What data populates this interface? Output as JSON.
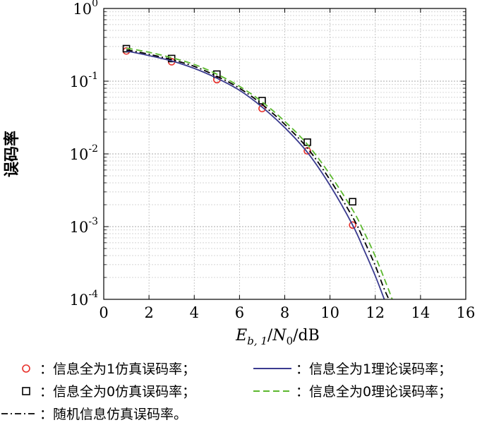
{
  "chart_data": {
    "type": "line",
    "title": "",
    "xlabel": {
      "E": "E",
      "sub": "b, 1",
      "slash": "/",
      "N": "N",
      "nsub": "0",
      "unit": "/dB"
    },
    "ylabel": "误码率",
    "xlim": [
      0,
      16
    ],
    "ylim": [
      0.0001,
      1
    ],
    "yscale": "log",
    "grid": true,
    "xticks": [
      "0",
      "2",
      "4",
      "6",
      "8",
      "10",
      "12",
      "14",
      "16"
    ],
    "yticks": [
      {
        "base": "10",
        "exp": "0"
      },
      {
        "base": "10",
        "exp": "-1"
      },
      {
        "base": "10",
        "exp": "-2"
      },
      {
        "base": "10",
        "exp": "-3"
      },
      {
        "base": "10",
        "exp": "-4"
      }
    ],
    "series": [
      {
        "name": "：信息全为1仿真误码率；",
        "style": "circle",
        "color": "#e8302a",
        "x": [
          1,
          3,
          5,
          7,
          9,
          11
        ],
        "y": [
          0.26,
          0.185,
          0.105,
          0.042,
          0.011,
          0.00105
        ]
      },
      {
        "name": "：信息全为0仿真误码率；",
        "style": "square",
        "color": "#000000",
        "x": [
          1,
          3,
          5,
          7,
          9,
          11
        ],
        "y": [
          0.28,
          0.205,
          0.125,
          0.054,
          0.0145,
          0.0022
        ]
      },
      {
        "name": "：信息全为1理论误码率；",
        "style": "solid",
        "color": "#3b3b8f",
        "x": [
          1,
          2,
          3,
          4,
          5,
          6,
          7,
          8,
          9,
          10,
          11,
          11.5,
          12,
          12.4
        ],
        "y": [
          0.26,
          0.225,
          0.19,
          0.15,
          0.11,
          0.075,
          0.044,
          0.023,
          0.0105,
          0.0037,
          0.00105,
          0.00048,
          0.00021,
          0.0001
        ]
      },
      {
        "name": "：信息全为0理论误码率；",
        "style": "dashed",
        "color": "#5cb82e",
        "x": [
          1,
          2,
          3,
          4,
          5,
          6,
          7,
          8,
          9,
          10,
          11,
          11.5,
          12,
          12.5,
          12.75
        ],
        "y": [
          0.285,
          0.25,
          0.21,
          0.17,
          0.125,
          0.085,
          0.052,
          0.028,
          0.0135,
          0.0052,
          0.0017,
          0.00085,
          0.00039,
          0.00016,
          0.0001
        ]
      },
      {
        "name": "：随机信息仿真误码率。",
        "style": "dashdot",
        "color": "#000000",
        "x": [
          1,
          2,
          3,
          4,
          5,
          6,
          7,
          8,
          9,
          10,
          11,
          11.5,
          12,
          12.35,
          12.6
        ],
        "y": [
          0.27,
          0.235,
          0.198,
          0.16,
          0.117,
          0.08,
          0.048,
          0.0255,
          0.012,
          0.0044,
          0.00135,
          0.00065,
          0.00029,
          0.00015,
          0.0001
        ]
      }
    ]
  }
}
